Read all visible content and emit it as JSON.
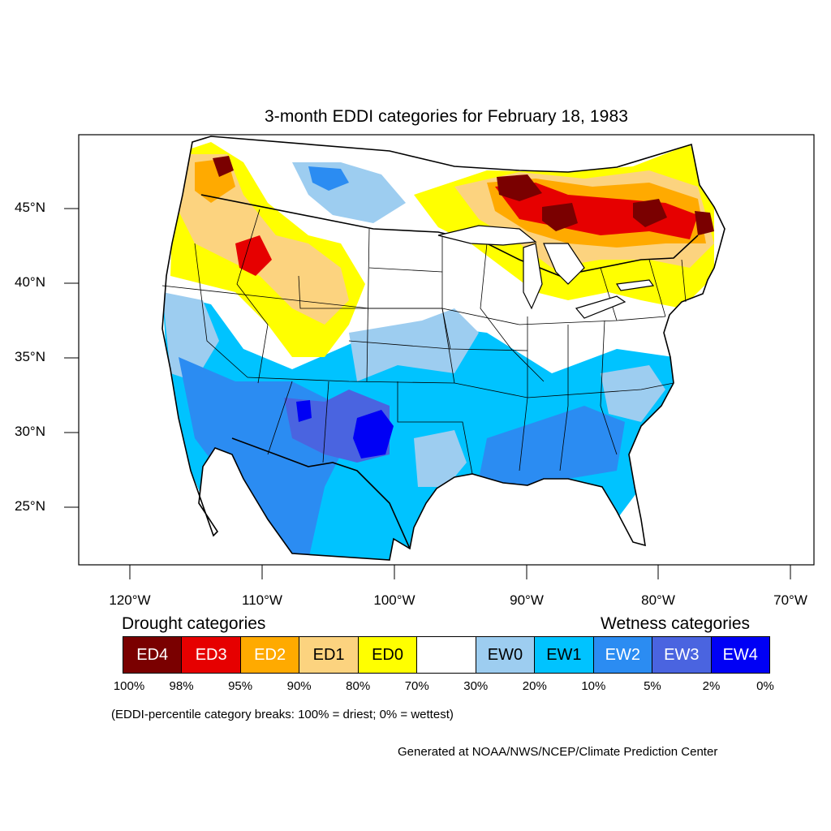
{
  "title": "3-month EDDI categories for February 18, 1983",
  "lat_labels": [
    "45°N",
    "40°N",
    "35°N",
    "30°N",
    "25°N"
  ],
  "lon_labels": [
    "120°W",
    "110°W",
    "100°W",
    "90°W",
    "80°W",
    "70°W"
  ],
  "legend": {
    "drought_heading": "Drought categories",
    "wetness_heading": "Wetness categories",
    "categories": [
      {
        "label": "ED4",
        "color": "#7a0000",
        "text_color": "#ffffff"
      },
      {
        "label": "ED3",
        "color": "#e60000",
        "text_color": "#ffffff"
      },
      {
        "label": "ED2",
        "color": "#ffaa00",
        "text_color": "#ffffff"
      },
      {
        "label": "ED1",
        "color": "#fcd37f",
        "text_color": "#000000"
      },
      {
        "label": "ED0",
        "color": "#ffff00",
        "text_color": "#000000"
      },
      {
        "label": "",
        "color": "#ffffff",
        "text_color": "#000000"
      },
      {
        "label": "EW0",
        "color": "#9dcdf0",
        "text_color": "#000000"
      },
      {
        "label": "EW1",
        "color": "#00c3ff",
        "text_color": "#000000"
      },
      {
        "label": "EW2",
        "color": "#2b8cf2",
        "text_color": "#ffffff"
      },
      {
        "label": "EW3",
        "color": "#4a64e0",
        "text_color": "#ffffff"
      },
      {
        "label": "EW4",
        "color": "#0000f5",
        "text_color": "#ffffff"
      }
    ],
    "breaks": [
      "100%",
      "98%",
      "95%",
      "90%",
      "80%",
      "70%",
      "30%",
      "20%",
      "10%",
      "5%",
      "2%",
      "0%"
    ]
  },
  "note": "(EDDI-percentile category breaks: 100% = driest; 0% = wettest)",
  "credit": "Generated at NOAA/NWS/NCEP/Climate Prediction Center"
}
